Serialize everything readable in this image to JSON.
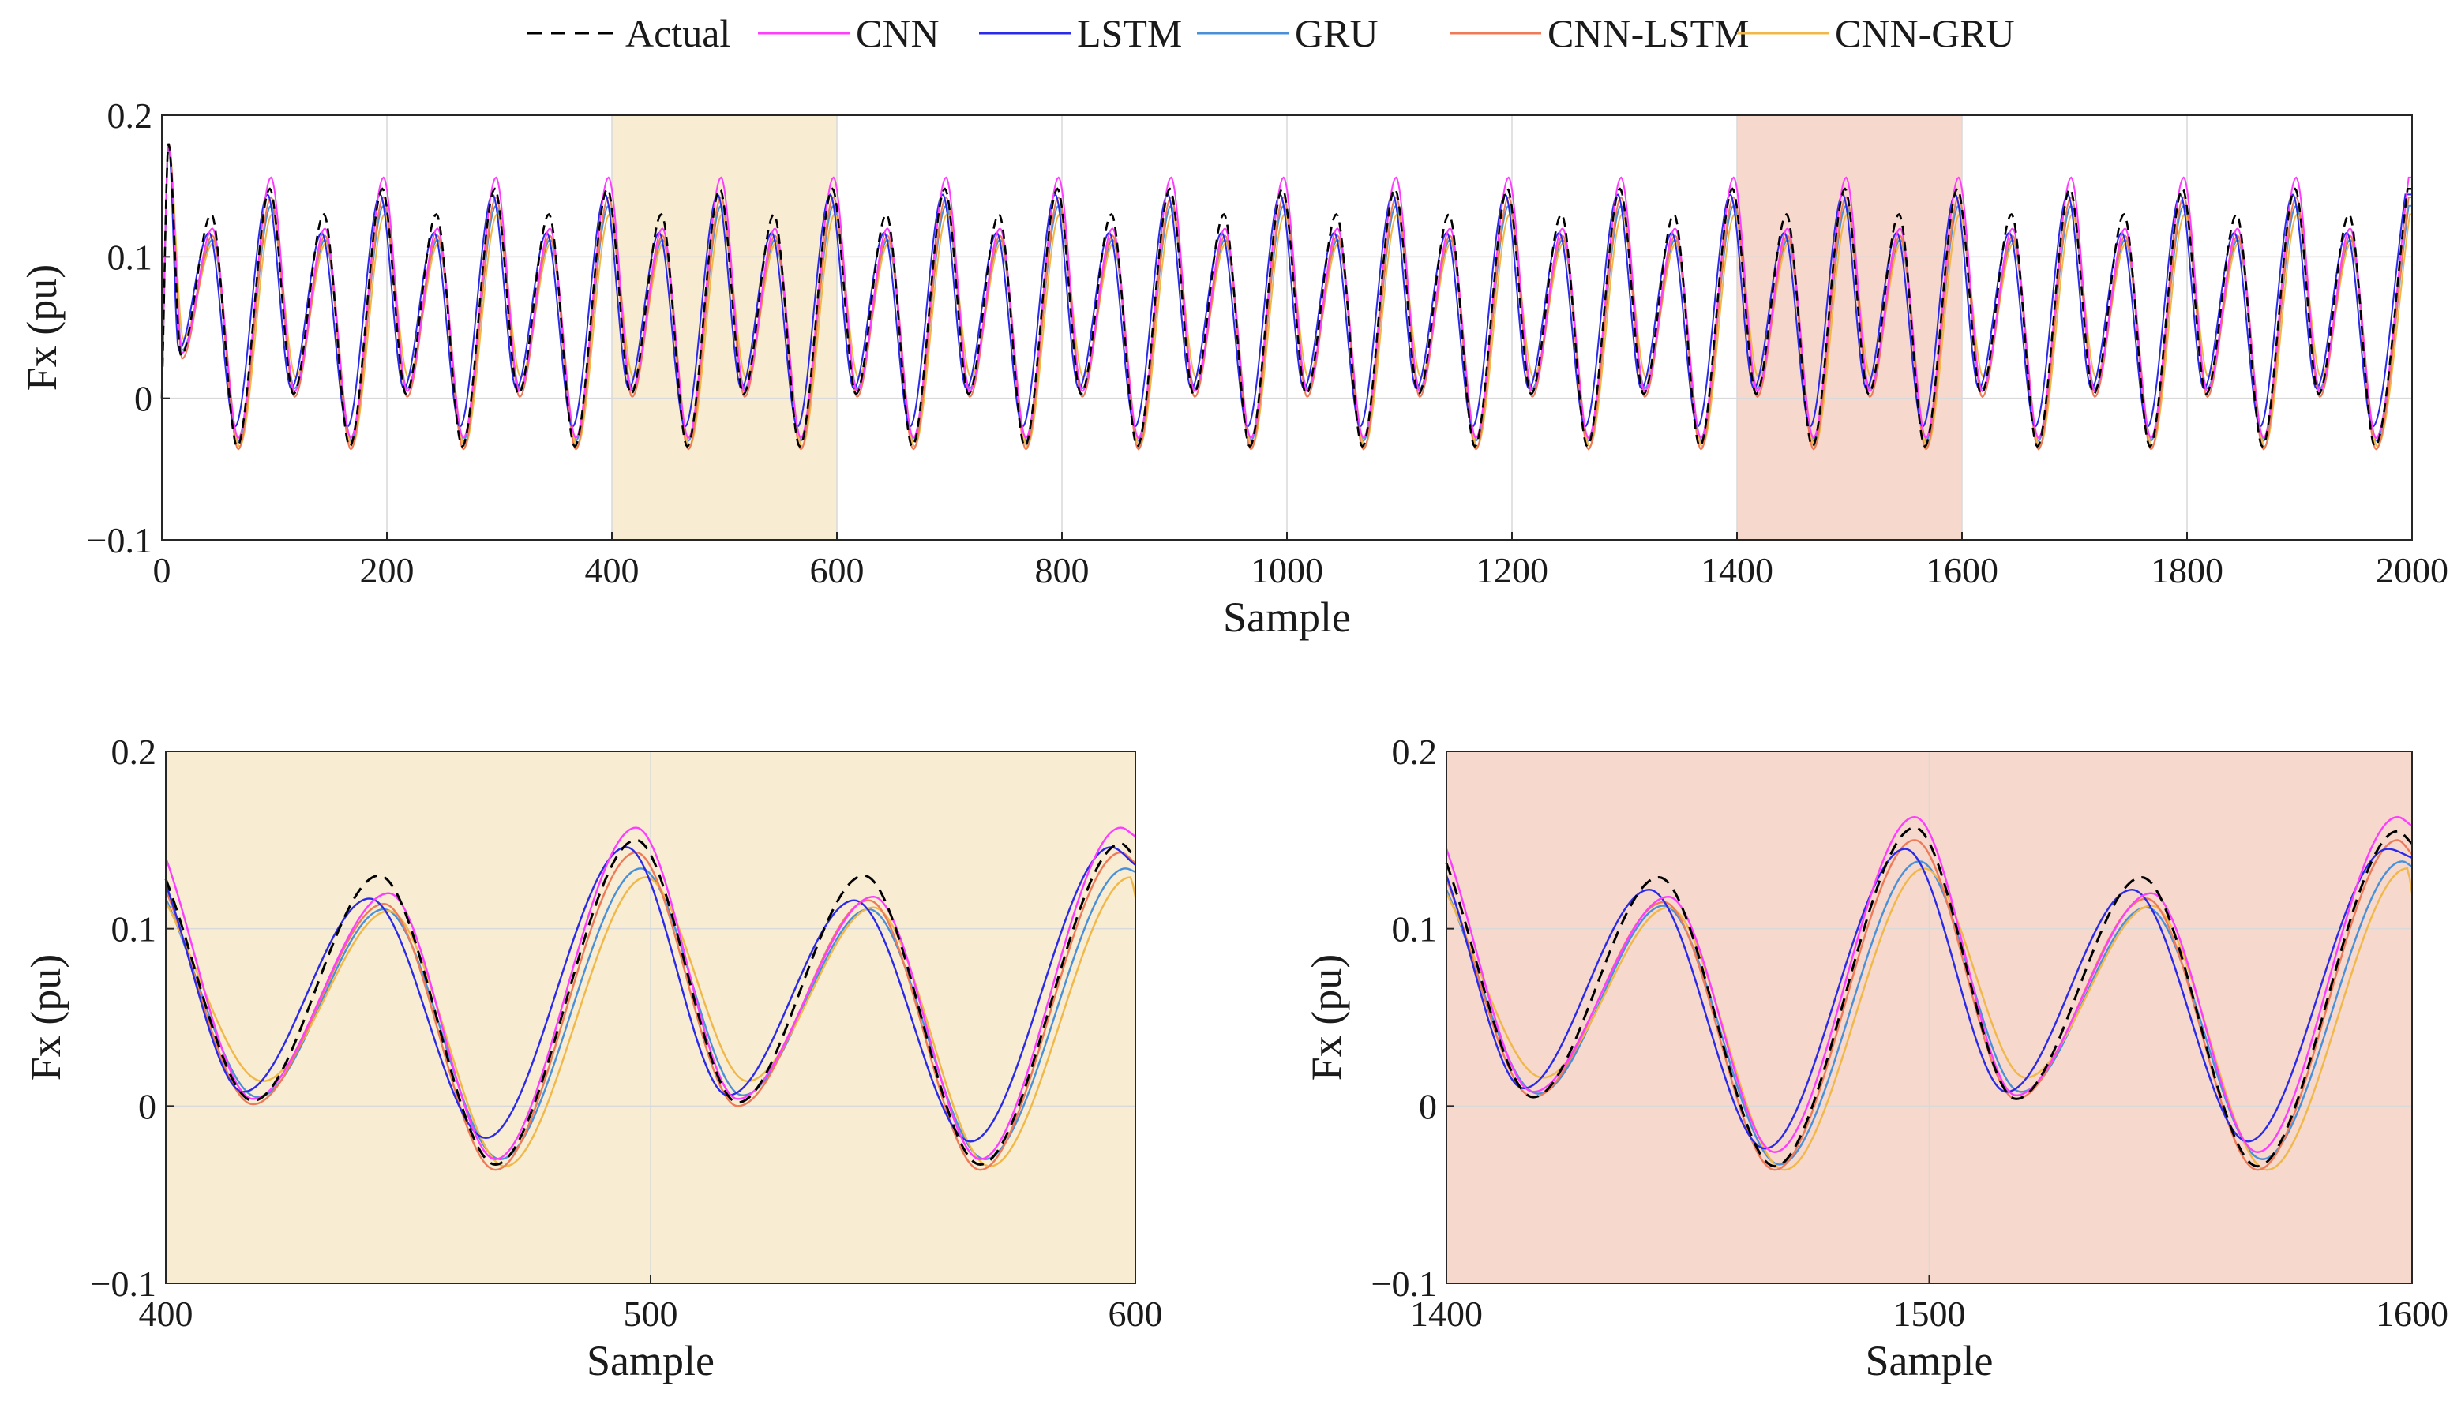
{
  "legend": [
    {
      "name": "Actual",
      "color": "#000000",
      "dash": true
    },
    {
      "name": "CNN",
      "color": "#ff3dff",
      "dash": false
    },
    {
      "name": "LSTM",
      "color": "#2a2ae8",
      "dash": false
    },
    {
      "name": "GRU",
      "color": "#4a90d9",
      "dash": false
    },
    {
      "name": "CNN-LSTM",
      "color": "#ee7a58",
      "dash": false
    },
    {
      "name": "CNN-GRU",
      "color": "#f0b848",
      "dash": false
    }
  ],
  "highlight_colors": {
    "window_a": "#f8ecd3",
    "window_b": "#f6d8cc"
  },
  "chart_data": [
    {
      "id": "overview",
      "type": "line",
      "xlabel": "Sample",
      "ylabel": "Fx (pu)",
      "xlim": [
        0,
        2000
      ],
      "ylim": [
        -0.1,
        0.2
      ],
      "xticks": [
        "0",
        "200",
        "400",
        "600",
        "800",
        "1000",
        "1200",
        "1400",
        "1600",
        "1800",
        "2000"
      ],
      "yticks": [
        "−0.1",
        "0",
        "0.1",
        "0.2"
      ],
      "grid": true,
      "highlight_regions": [
        {
          "x0": 400,
          "x1": 600,
          "color": "#f8ecd3"
        },
        {
          "x0": 1400,
          "x1": 1600,
          "color": "#f6d8cc"
        }
      ],
      "signal": {
        "period_samples": 100,
        "peak_a_x_offset": 44,
        "peak_a": 0.13,
        "trough_a_x_offset": 17,
        "trough_a": 0.003,
        "peak_b_x_offset": 96,
        "peak_b": 0.148,
        "trough_b_x_offset": 67,
        "trough_b": -0.034,
        "initial_spike": 0.18
      }
    },
    {
      "id": "zoom-400-600",
      "type": "line",
      "xlabel": "Sample",
      "ylabel": "Fx (pu)",
      "xlim": [
        400,
        600
      ],
      "ylim": [
        -0.1,
        0.2
      ],
      "xticks": [
        "400",
        "500",
        "600"
      ],
      "yticks": [
        "−0.1",
        "0",
        "0.1",
        "0.2"
      ],
      "grid": true,
      "background": "#f8ecd3",
      "series": [
        {
          "name": "Actual",
          "points": [
            [
              400,
              0.128
            ],
            [
              418,
              0.003
            ],
            [
              444,
              0.13
            ],
            [
              468,
              -0.033
            ],
            [
              497,
              0.15
            ],
            [
              518,
              0.002
            ],
            [
              544,
              0.13
            ],
            [
              568,
              -0.033
            ],
            [
              597,
              0.148
            ],
            [
              600,
              0.14
            ]
          ]
        },
        {
          "name": "CNN",
          "points": [
            [
              400,
              0.14
            ],
            [
              418,
              0.004
            ],
            [
              446,
              0.12
            ],
            [
              468,
              -0.03
            ],
            [
              497,
              0.157
            ],
            [
              518,
              0.004
            ],
            [
              546,
              0.118
            ],
            [
              568,
              -0.03
            ],
            [
              597,
              0.157
            ],
            [
              600,
              0.152
            ]
          ]
        },
        {
          "name": "LSTM",
          "points": [
            [
              400,
              0.125
            ],
            [
              416,
              0.008
            ],
            [
              442,
              0.117
            ],
            [
              466,
              -0.018
            ],
            [
              495,
              0.146
            ],
            [
              516,
              0.006
            ],
            [
              542,
              0.116
            ],
            [
              566,
              -0.02
            ],
            [
              595,
              0.146
            ],
            [
              600,
              0.136
            ]
          ]
        },
        {
          "name": "GRU",
          "points": [
            [
              400,
              0.117
            ],
            [
              419,
              0.005
            ],
            [
              445,
              0.111
            ],
            [
              469,
              -0.03
            ],
            [
              498,
              0.134
            ],
            [
              519,
              0.006
            ],
            [
              545,
              0.111
            ],
            [
              569,
              -0.03
            ],
            [
              598,
              0.134
            ],
            [
              600,
              0.132
            ]
          ]
        },
        {
          "name": "CNN-LSTM",
          "points": [
            [
              400,
              0.122
            ],
            [
              418,
              0.001
            ],
            [
              445,
              0.114
            ],
            [
              468,
              -0.036
            ],
            [
              497,
              0.143
            ],
            [
              518,
              0.0
            ],
            [
              545,
              0.116
            ],
            [
              568,
              -0.036
            ],
            [
              597,
              0.143
            ],
            [
              600,
              0.137
            ]
          ]
        },
        {
          "name": "CNN-GRU",
          "points": [
            [
              400,
              0.115
            ],
            [
              420,
              0.014
            ],
            [
              446,
              0.11
            ],
            [
              470,
              -0.034
            ],
            [
              499,
              0.129
            ],
            [
              520,
              0.014
            ],
            [
              546,
              0.112
            ],
            [
              570,
              -0.034
            ],
            [
              599,
              0.129
            ],
            [
              600,
              0.118
            ]
          ]
        }
      ]
    },
    {
      "id": "zoom-1400-1600",
      "type": "line",
      "xlabel": "Sample",
      "ylabel": "Fx (pu)",
      "xlim": [
        1400,
        1600
      ],
      "ylim": [
        -0.1,
        0.2
      ],
      "xticks": [
        "1400",
        "1500",
        "1600"
      ],
      "yticks": [
        "−0.1",
        "0",
        "0.1",
        "0.2"
      ],
      "grid": true,
      "background": "#f6d8cc",
      "series": [
        {
          "name": "Actual",
          "points": [
            [
              1400,
              0.137
            ],
            [
              1418,
              0.005
            ],
            [
              1444,
              0.129
            ],
            [
              1468,
              -0.034
            ],
            [
              1497,
              0.157
            ],
            [
              1518,
              0.004
            ],
            [
              1544,
              0.129
            ],
            [
              1568,
              -0.034
            ],
            [
              1597,
              0.155
            ],
            [
              1600,
              0.148
            ]
          ]
        },
        {
          "name": "CNN",
          "points": [
            [
              1400,
              0.145
            ],
            [
              1418,
              0.008
            ],
            [
              1446,
              0.118
            ],
            [
              1468,
              -0.026
            ],
            [
              1497,
              0.163
            ],
            [
              1518,
              0.006
            ],
            [
              1546,
              0.12
            ],
            [
              1568,
              -0.026
            ],
            [
              1597,
              0.163
            ],
            [
              1600,
              0.158
            ]
          ]
        },
        {
          "name": "LSTM",
          "points": [
            [
              1400,
              0.13
            ],
            [
              1416,
              0.01
            ],
            [
              1442,
              0.122
            ],
            [
              1466,
              -0.024
            ],
            [
              1495,
              0.145
            ],
            [
              1516,
              0.008
            ],
            [
              1542,
              0.122
            ],
            [
              1566,
              -0.02
            ],
            [
              1595,
              0.145
            ],
            [
              1600,
              0.14
            ]
          ]
        },
        {
          "name": "GRU",
          "points": [
            [
              1400,
              0.122
            ],
            [
              1419,
              0.007
            ],
            [
              1445,
              0.113
            ],
            [
              1469,
              -0.033
            ],
            [
              1498,
              0.138
            ],
            [
              1519,
              0.008
            ],
            [
              1545,
              0.112
            ],
            [
              1569,
              -0.03
            ],
            [
              1598,
              0.138
            ],
            [
              1600,
              0.135
            ]
          ]
        },
        {
          "name": "CNN-LSTM",
          "points": [
            [
              1400,
              0.128
            ],
            [
              1418,
              0.005
            ],
            [
              1445,
              0.115
            ],
            [
              1468,
              -0.036
            ],
            [
              1497,
              0.15
            ],
            [
              1518,
              0.004
            ],
            [
              1545,
              0.117
            ],
            [
              1568,
              -0.036
            ],
            [
              1597,
              0.15
            ],
            [
              1600,
              0.142
            ]
          ]
        },
        {
          "name": "CNN-GRU",
          "points": [
            [
              1400,
              0.12
            ],
            [
              1420,
              0.016
            ],
            [
              1446,
              0.112
            ],
            [
              1470,
              -0.036
            ],
            [
              1499,
              0.134
            ],
            [
              1520,
              0.016
            ],
            [
              1546,
              0.113
            ],
            [
              1570,
              -0.036
            ],
            [
              1599,
              0.134
            ],
            [
              1600,
              0.12
            ]
          ]
        }
      ]
    }
  ]
}
